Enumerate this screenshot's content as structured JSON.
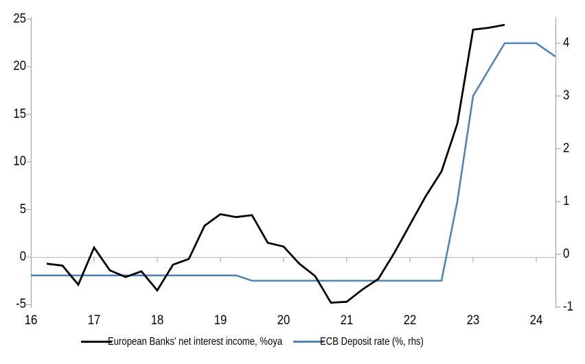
{
  "chart_data": {
    "type": "line",
    "title": "",
    "x_axis": {
      "ticks": [
        16,
        17,
        18,
        19,
        20,
        21,
        22,
        23,
        24
      ],
      "range": [
        16,
        24.31
      ]
    },
    "left_axis": {
      "ticks": [
        25,
        20,
        15,
        10,
        5,
        0,
        -5
      ],
      "range": [
        -5,
        25
      ]
    },
    "right_axis": {
      "ticks": [
        4,
        3,
        2,
        1,
        0,
        -1
      ],
      "range": [
        -1,
        4.5
      ]
    },
    "grid": "zero-line-only",
    "legend_position": "bottom",
    "series": [
      {
        "name": "European Banks' net interest income, %oya",
        "axis": "left",
        "color": "#000000",
        "width": 2.8,
        "points": [
          [
            16.25,
            -0.7
          ],
          [
            16.5,
            -0.9
          ],
          [
            16.75,
            -2.9
          ],
          [
            17.0,
            1.0
          ],
          [
            17.25,
            -1.4
          ],
          [
            17.5,
            -2.1
          ],
          [
            17.75,
            -1.5
          ],
          [
            18.0,
            -3.5
          ],
          [
            18.25,
            -0.8
          ],
          [
            18.5,
            -0.2
          ],
          [
            18.75,
            3.3
          ],
          [
            19.0,
            4.5
          ],
          [
            19.25,
            4.2
          ],
          [
            19.5,
            4.4
          ],
          [
            19.75,
            1.5
          ],
          [
            20.0,
            1.1
          ],
          [
            20.25,
            -0.7
          ],
          [
            20.5,
            -2.0
          ],
          [
            20.75,
            -4.8
          ],
          [
            21.0,
            -4.7
          ],
          [
            21.25,
            -3.4
          ],
          [
            21.5,
            -2.3
          ],
          [
            21.75,
            0.4
          ],
          [
            22.0,
            3.4
          ],
          [
            22.25,
            6.4
          ],
          [
            22.5,
            9.0
          ],
          [
            22.75,
            14.0
          ],
          [
            23.0,
            23.9
          ],
          [
            23.25,
            24.1
          ],
          [
            23.5,
            24.4
          ]
        ]
      },
      {
        "name": "ECB Deposit rate (%, rhs)",
        "axis": "right",
        "color": "#4f81bd",
        "width": 2.6,
        "points": [
          [
            16.0,
            -0.4
          ],
          [
            19.25,
            -0.4
          ],
          [
            19.5,
            -0.5
          ],
          [
            22.5,
            -0.5
          ],
          [
            22.75,
            1.0
          ],
          [
            23.0,
            3.0
          ],
          [
            23.25,
            3.5
          ],
          [
            23.5,
            4.0
          ],
          [
            23.75,
            4.0
          ],
          [
            24.0,
            4.0
          ],
          [
            24.3,
            3.75
          ]
        ]
      }
    ]
  },
  "legend": {
    "series1": "European Banks' net interest income, %oya",
    "series2": "ECB Deposit rate (%, rhs)"
  },
  "colors": {
    "axis": "#a8a8a8",
    "zero_line": "#c0c0c0",
    "series1": "#000000",
    "series2": "#4f81bd",
    "text": "#000000"
  }
}
